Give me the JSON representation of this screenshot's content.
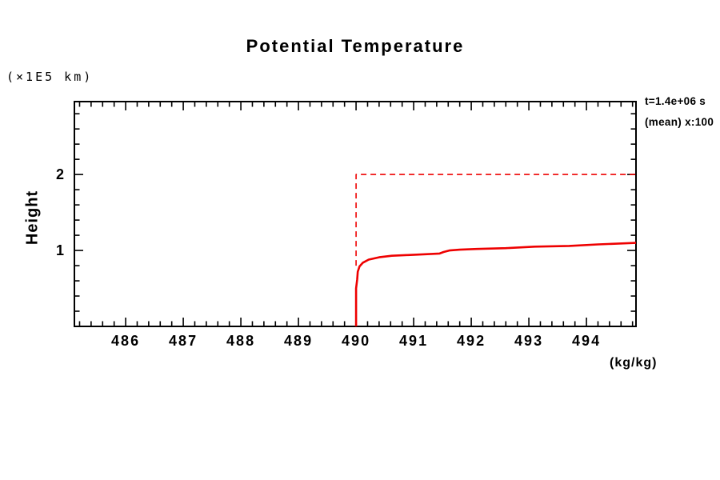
{
  "chart_data": {
    "type": "line",
    "title": "Potential Temperature",
    "ylabel": "Height",
    "y_axis_units": "(×1E5 km)",
    "x_axis_units": "(kg/kg)",
    "annotations": [
      "t=1.4e+06 s",
      "(mean) x:100"
    ],
    "xlim": [
      485.11,
      494.86
    ],
    "ylim": [
      0,
      2.96
    ],
    "x_major_ticks": [
      486,
      487,
      488,
      489,
      490,
      491,
      492,
      493,
      494
    ],
    "x_minor_step": 0.2,
    "y_major_ticks": [
      1,
      2
    ],
    "y_minor_step": 0.2,
    "grid": false,
    "legend": "none",
    "line_color": "#ee0000",
    "axis_color": "#000000",
    "series": [
      {
        "name": "mean-profile-solid",
        "style": "solid",
        "points": [
          [
            490.0,
            0.0
          ],
          [
            490.0,
            0.25
          ],
          [
            490.0,
            0.5
          ],
          [
            490.02,
            0.62
          ],
          [
            490.03,
            0.72
          ],
          [
            490.06,
            0.79
          ],
          [
            490.12,
            0.84
          ],
          [
            490.22,
            0.88
          ],
          [
            490.4,
            0.91
          ],
          [
            490.62,
            0.93
          ],
          [
            490.9,
            0.94
          ],
          [
            491.2,
            0.95
          ],
          [
            491.45,
            0.96
          ],
          [
            491.52,
            0.98
          ],
          [
            491.62,
            1.0
          ],
          [
            491.8,
            1.01
          ],
          [
            492.1,
            1.02
          ],
          [
            492.6,
            1.03
          ],
          [
            493.1,
            1.05
          ],
          [
            493.7,
            1.06
          ],
          [
            494.2,
            1.08
          ],
          [
            494.86,
            1.1
          ]
        ]
      },
      {
        "name": "reference-profile-dashed",
        "style": "dashed",
        "points": [
          [
            490.0,
            0.8
          ],
          [
            490.0,
            2.0
          ],
          [
            494.86,
            2.0
          ]
        ]
      }
    ]
  }
}
